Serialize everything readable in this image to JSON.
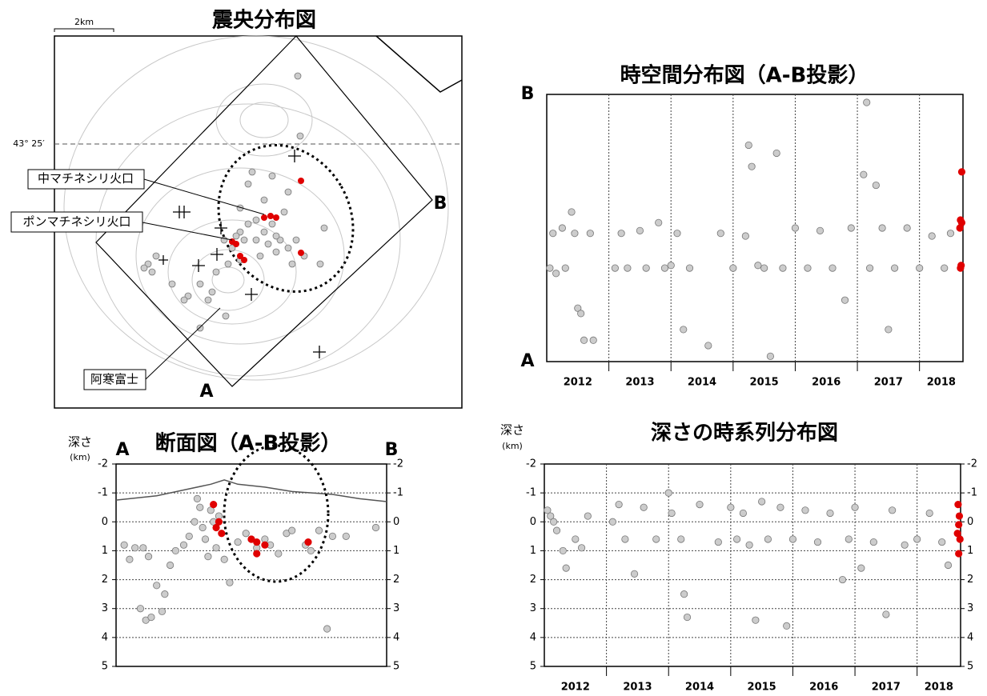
{
  "map": {
    "title": "震央分布図",
    "scale": "2km",
    "latitude": "43° 25′",
    "labels": {
      "naka": "中マチネシリ火口",
      "pon": "ポンマチネシリ火口",
      "fuji": "阿寒富士",
      "a": "A",
      "b": "B"
    }
  },
  "chart_data": [
    {
      "type": "scatter",
      "title": "時空間分布図（A-B投影）",
      "ylabels": [
        "A",
        "B"
      ],
      "ylim": [
        0,
        1
      ],
      "xlim": [
        2012,
        2018.7
      ],
      "xticks": [
        {
          "value": 2012.5,
          "label": "2012"
        },
        {
          "value": 2013.5,
          "label": "2013"
        },
        {
          "value": 2014.5,
          "label": "2014"
        },
        {
          "value": 2015.5,
          "label": "2015"
        },
        {
          "value": 2016.5,
          "label": "2016"
        },
        {
          "value": 2017.5,
          "label": "2017"
        },
        {
          "value": 2018.35,
          "label": "2018"
        }
      ],
      "xgrid": [
        2013,
        2014,
        2015,
        2016,
        2017,
        2018
      ],
      "series": [
        {
          "color": "#cccccc",
          "x": [
            2012.05,
            2012.1,
            2012.15,
            2012.25,
            2012.3,
            2012.4,
            2012.45,
            2012.5,
            2012.55,
            2012.6,
            2012.7,
            2012.75,
            2013.1,
            2013.2,
            2013.3,
            2013.5,
            2013.6,
            2013.8,
            2013.9,
            2014.0,
            2014.1,
            2014.2,
            2014.3,
            2014.6,
            2014.8,
            2015.0,
            2015.2,
            2015.25,
            2015.3,
            2015.4,
            2015.5,
            2015.6,
            2015.7,
            2015.8,
            2016.0,
            2016.2,
            2016.4,
            2016.6,
            2016.8,
            2016.9,
            2017.1,
            2017.2,
            2017.3,
            2017.4,
            2017.5,
            2017.6,
            2017.8,
            2018.0,
            2018.2,
            2018.4,
            2018.5,
            2017.15
          ],
          "y": [
            0.35,
            0.48,
            0.33,
            0.5,
            0.35,
            0.56,
            0.48,
            0.2,
            0.18,
            0.08,
            0.48,
            0.08,
            0.35,
            0.48,
            0.35,
            0.49,
            0.35,
            0.52,
            0.35,
            0.36,
            0.48,
            0.12,
            0.35,
            0.06,
            0.48,
            0.35,
            0.47,
            0.81,
            0.73,
            0.36,
            0.35,
            0.02,
            0.78,
            0.35,
            0.5,
            0.35,
            0.49,
            0.35,
            0.23,
            0.5,
            0.7,
            0.35,
            0.66,
            0.5,
            0.12,
            0.35,
            0.5,
            0.35,
            0.47,
            0.35,
            0.48,
            0.97
          ]
        },
        {
          "color": "#e00000",
          "x": [
            2018.68,
            2018.66,
            2018.65,
            2018.67,
            2018.66,
            2018.68
          ],
          "y": [
            0.71,
            0.53,
            0.5,
            0.36,
            0.35,
            0.52
          ]
        }
      ]
    },
    {
      "type": "section",
      "title": "断面図（A-B投影）",
      "ylabel": "深さ",
      "yunit": "(km)",
      "ylabels": [
        "A",
        "B"
      ],
      "xlim": [
        0,
        1
      ],
      "ylim": [
        -2,
        5
      ],
      "yticks": [
        -2,
        -1,
        0,
        1,
        2,
        3,
        4,
        5
      ],
      "topography": {
        "x": [
          0,
          0.15,
          0.25,
          0.35,
          0.4,
          0.45,
          0.55,
          0.65,
          0.8,
          0.9,
          1
        ],
        "y": [
          -0.75,
          -0.9,
          -1.1,
          -1.3,
          -1.45,
          -1.3,
          -1.2,
          -1.05,
          -0.95,
          -0.8,
          -0.7
        ]
      },
      "series": [
        {
          "color": "#cccccc",
          "x": [
            0.03,
            0.05,
            0.07,
            0.1,
            0.12,
            0.09,
            0.11,
            0.13,
            0.15,
            0.17,
            0.18,
            0.2,
            0.22,
            0.25,
            0.3,
            0.31,
            0.32,
            0.33,
            0.34,
            0.35,
            0.36,
            0.37,
            0.38,
            0.4,
            0.42,
            0.45,
            0.48,
            0.5,
            0.52,
            0.55,
            0.57,
            0.6,
            0.63,
            0.65,
            0.7,
            0.72,
            0.75,
            0.8,
            0.85,
            0.78,
            0.96,
            0.27,
            0.29
          ],
          "y": [
            0.8,
            1.3,
            0.9,
            0.9,
            1.2,
            3.0,
            3.4,
            3.3,
            2.2,
            3.1,
            2.5,
            1.5,
            1.0,
            0.8,
            -0.8,
            -0.5,
            0.2,
            0.6,
            1.2,
            -0.4,
            0.0,
            0.9,
            -0.2,
            1.3,
            2.1,
            0.7,
            0.4,
            0.6,
            0.9,
            0.6,
            0.8,
            1.1,
            0.4,
            0.3,
            0.8,
            1.0,
            0.3,
            0.5,
            0.5,
            3.7,
            0.2,
            0.5,
            0.0
          ]
        },
        {
          "color": "#e00000",
          "x": [
            0.36,
            0.37,
            0.38,
            0.39,
            0.5,
            0.52,
            0.55,
            0.52,
            0.71
          ],
          "y": [
            -0.6,
            0.2,
            0.0,
            0.4,
            0.6,
            0.7,
            0.8,
            1.1,
            0.7
          ]
        }
      ]
    },
    {
      "type": "scatter",
      "title": "深さの時系列分布図",
      "ylabel": "深さ",
      "yunit": "(km)",
      "xlim": [
        2012,
        2018.7
      ],
      "ylim": [
        -2,
        5
      ],
      "yticks": [
        -2,
        -1,
        0,
        1,
        2,
        3,
        4,
        5
      ],
      "xticks": [
        {
          "value": 2012.5,
          "label": "2012"
        },
        {
          "value": 2013.5,
          "label": "2013"
        },
        {
          "value": 2014.5,
          "label": "2014"
        },
        {
          "value": 2015.5,
          "label": "2015"
        },
        {
          "value": 2016.5,
          "label": "2016"
        },
        {
          "value": 2017.5,
          "label": "2017"
        },
        {
          "value": 2018.35,
          "label": "2018"
        }
      ],
      "xgrid": [
        2013,
        2014,
        2015,
        2016,
        2017,
        2018
      ],
      "series": [
        {
          "color": "#cccccc",
          "x": [
            2012.05,
            2012.1,
            2012.15,
            2012.2,
            2012.3,
            2012.35,
            2012.5,
            2012.6,
            2012.7,
            2013.1,
            2013.2,
            2013.3,
            2013.45,
            2013.6,
            2013.8,
            2014.0,
            2014.05,
            2014.2,
            2014.25,
            2014.3,
            2014.5,
            2014.8,
            2015.0,
            2015.1,
            2015.2,
            2015.3,
            2015.4,
            2015.5,
            2015.6,
            2015.8,
            2015.9,
            2016.0,
            2016.2,
            2016.4,
            2016.6,
            2016.8,
            2016.9,
            2017.0,
            2017.1,
            2017.3,
            2017.5,
            2017.6,
            2017.8,
            2018.0,
            2018.2,
            2018.4,
            2018.5
          ],
          "y": [
            -0.4,
            -0.2,
            0.0,
            0.3,
            1.0,
            1.6,
            0.6,
            0.9,
            -0.2,
            0.0,
            -0.6,
            0.6,
            1.8,
            -0.5,
            0.6,
            -1.0,
            -0.3,
            0.6,
            2.5,
            3.3,
            -0.6,
            0.7,
            -0.5,
            0.6,
            -0.3,
            0.8,
            3.4,
            -0.7,
            0.6,
            -0.5,
            3.6,
            0.6,
            -0.4,
            0.7,
            -0.3,
            2.0,
            0.6,
            -0.5,
            1.6,
            0.7,
            3.2,
            -0.4,
            0.8,
            0.6,
            -0.3,
            0.7,
            1.5
          ]
        },
        {
          "color": "#e00000",
          "x": [
            2018.66,
            2018.68,
            2018.67,
            2018.65,
            2018.69,
            2018.67
          ],
          "y": [
            -0.6,
            -0.2,
            0.1,
            0.4,
            0.6,
            1.1
          ]
        }
      ]
    }
  ]
}
